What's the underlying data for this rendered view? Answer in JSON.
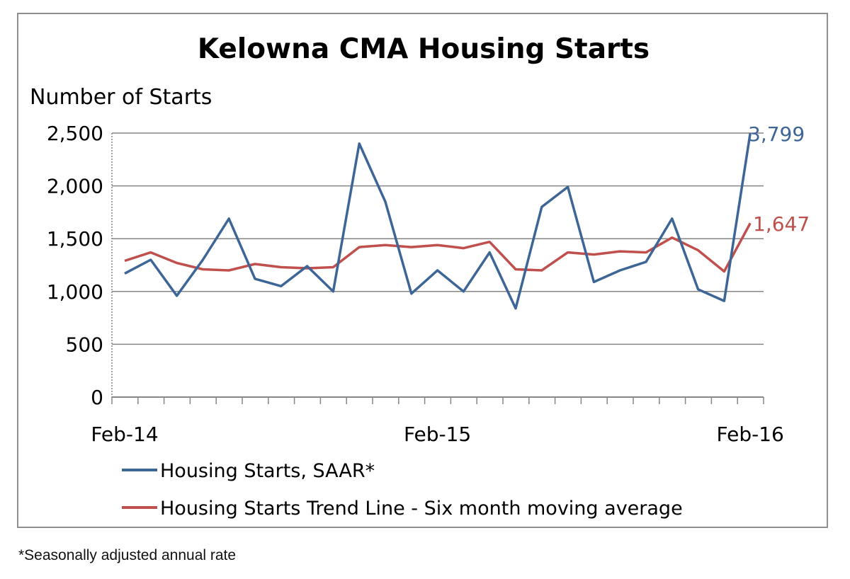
{
  "footnote": "*Seasonally adjusted annual rate",
  "colors": {
    "saar": "#3d6596",
    "trend": "#c0504d",
    "grid": "#868686",
    "axis": "#868686"
  },
  "chart_data": {
    "type": "line",
    "title": "Kelowna CMA Housing Starts",
    "ylabel": "Number of Starts",
    "xlabel": "",
    "ylim": [
      0,
      2500
    ],
    "yticks": [
      "0",
      "500",
      "1,000",
      "1,500",
      "2,000",
      "2,500"
    ],
    "ytick_values": [
      0,
      500,
      1000,
      1500,
      2000,
      2500
    ],
    "grid": true,
    "legend_position": "bottom",
    "x": [
      "Feb-14",
      "Mar-14",
      "Apr-14",
      "May-14",
      "Jun-14",
      "Jul-14",
      "Aug-14",
      "Sep-14",
      "Oct-14",
      "Nov-14",
      "Dec-14",
      "Jan-15",
      "Feb-15",
      "Mar-15",
      "Apr-15",
      "May-15",
      "Jun-15",
      "Jul-15",
      "Aug-15",
      "Sep-15",
      "Oct-15",
      "Nov-15",
      "Dec-15",
      "Jan-16",
      "Feb-16"
    ],
    "xtick_labels": [
      {
        "index": 0,
        "label": "Feb-14"
      },
      {
        "index": 12,
        "label": "Feb-15"
      },
      {
        "index": 24,
        "label": "Feb-16"
      }
    ],
    "series": [
      {
        "name": "Housing Starts, SAAR*",
        "color": "#3d6596",
        "values": [
          1170,
          1300,
          960,
          1300,
          1690,
          1120,
          1050,
          1240,
          1000,
          2400,
          1850,
          980,
          1200,
          1000,
          1370,
          840,
          1800,
          1990,
          1090,
          1200,
          1280,
          1690,
          1020,
          910,
          3799
        ],
        "end_label": "3,799"
      },
      {
        "name": "Housing Starts Trend Line - Six month moving average",
        "color": "#c0504d",
        "values": [
          1290,
          1370,
          1270,
          1210,
          1200,
          1260,
          1230,
          1220,
          1230,
          1420,
          1440,
          1420,
          1440,
          1410,
          1470,
          1210,
          1200,
          1370,
          1350,
          1380,
          1370,
          1510,
          1390,
          1190,
          1647
        ],
        "end_label": "1,647"
      }
    ]
  }
}
